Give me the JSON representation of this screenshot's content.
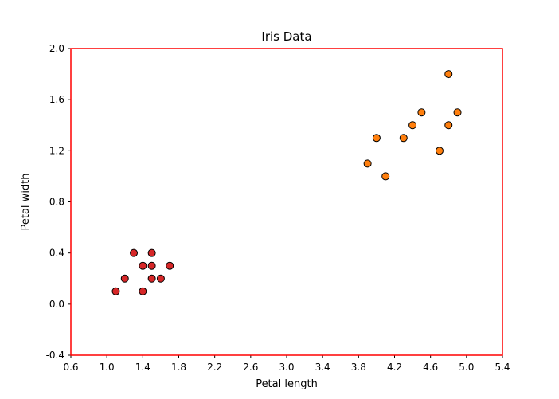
{
  "chart_data": {
    "type": "scatter",
    "title": "Iris Data",
    "xlabel": "Petal length",
    "ylabel": "Petal width",
    "xlim": [
      0.6,
      5.4
    ],
    "ylim": [
      -0.4,
      2.0
    ],
    "xticks": [
      "0.6",
      "1.0",
      "1.4",
      "1.8",
      "2.2",
      "2.6",
      "3.0",
      "3.4",
      "3.8",
      "4.2",
      "4.6",
      "5.0",
      "5.4"
    ],
    "yticks": [
      "-0.4",
      "0.0",
      "0.4",
      "0.8",
      "1.2",
      "1.6",
      "2.0"
    ],
    "frame_color": "#ff0000",
    "grid": false,
    "series": [
      {
        "color": "#d62728",
        "points": [
          {
            "x": 1.1,
            "y": 0.1
          },
          {
            "x": 1.2,
            "y": 0.2
          },
          {
            "x": 1.3,
            "y": 0.4
          },
          {
            "x": 1.4,
            "y": 0.3
          },
          {
            "x": 1.4,
            "y": 0.1
          },
          {
            "x": 1.5,
            "y": 0.4
          },
          {
            "x": 1.5,
            "y": 0.3
          },
          {
            "x": 1.5,
            "y": 0.2
          },
          {
            "x": 1.6,
            "y": 0.2
          },
          {
            "x": 1.7,
            "y": 0.3
          }
        ]
      },
      {
        "color": "#ff7f0e",
        "points": [
          {
            "x": 3.9,
            "y": 1.1
          },
          {
            "x": 4.0,
            "y": 1.3
          },
          {
            "x": 4.1,
            "y": 1.0
          },
          {
            "x": 4.3,
            "y": 1.3
          },
          {
            "x": 4.4,
            "y": 1.4
          },
          {
            "x": 4.5,
            "y": 1.5
          },
          {
            "x": 4.7,
            "y": 1.2
          },
          {
            "x": 4.8,
            "y": 1.8
          },
          {
            "x": 4.8,
            "y": 1.4
          },
          {
            "x": 4.9,
            "y": 1.5
          }
        ]
      }
    ]
  }
}
